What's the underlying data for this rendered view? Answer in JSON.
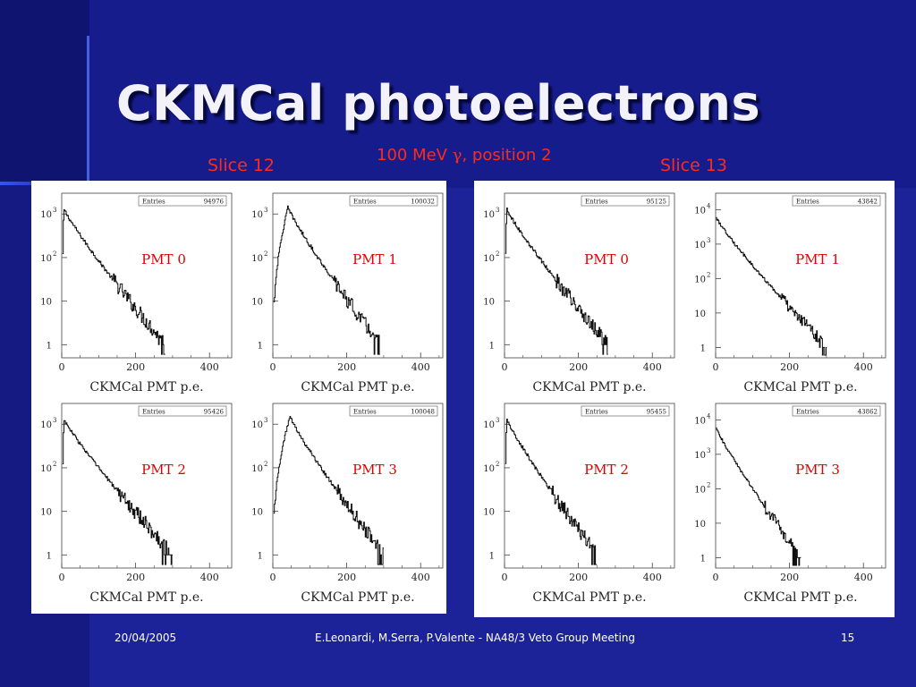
{
  "slide": {
    "title": "CKMCal photoelectrons",
    "condition": {
      "prefix": "100 MeV ",
      "symbol": "γ",
      "suffix": ", position 2"
    },
    "footer": {
      "date": "20/04/2005",
      "authors": "E.Leonardi, M.Serra, P.Valente - NA48/3 Veto Group Meeting",
      "page": "15"
    },
    "colors": {
      "background": "#1c2298",
      "label": "#ff2b1a",
      "pmt_label": "#dd0000"
    }
  },
  "chart_data": [
    {
      "slice_label": "Slice 12",
      "plots": [
        {
          "type": "histogram",
          "pmt_label": "PMT 0",
          "entries_label": "Entries",
          "entries": "94976",
          "xlabel": "CKMCal PMT p.e.",
          "xticks": [
            0,
            200,
            400
          ],
          "xlim": [
            0,
            460
          ],
          "yscale": "log",
          "ylim": [
            0.5,
            3000
          ],
          "yticks": [
            {
              "v": 1,
              "t": "1"
            },
            {
              "v": 10,
              "t": "10"
            },
            {
              "v": 100,
              "t": "10",
              "e": "2"
            },
            {
              "v": 1000,
              "t": "10",
              "e": "3"
            }
          ],
          "peak_x": 5,
          "peak_y": 1300,
          "tail_end_x": 280,
          "noise": 0.35
        },
        {
          "type": "histogram",
          "pmt_label": "PMT 1",
          "entries_label": "Entries",
          "entries": "100032",
          "xlabel": "CKMCal PMT p.e.",
          "xticks": [
            0,
            200,
            400
          ],
          "xlim": [
            0,
            460
          ],
          "yscale": "log",
          "ylim": [
            0.5,
            3000
          ],
          "yticks": [
            {
              "v": 1,
              "t": "1"
            },
            {
              "v": 10,
              "t": "10"
            },
            {
              "v": 100,
              "t": "10",
              "e": "2"
            },
            {
              "v": 1000,
              "t": "10",
              "e": "3"
            }
          ],
          "peak_x": 40,
          "peak_y": 1400,
          "tail_end_x": 290,
          "noise": 0.35
        },
        {
          "type": "histogram",
          "pmt_label": "PMT 2",
          "entries_label": "Entries",
          "entries": "95426",
          "xlabel": "CKMCal PMT p.e.",
          "xticks": [
            0,
            200,
            400
          ],
          "xlim": [
            0,
            460
          ],
          "yscale": "log",
          "ylim": [
            0.5,
            3000
          ],
          "yticks": [
            {
              "v": 1,
              "t": "1"
            },
            {
              "v": 10,
              "t": "10"
            },
            {
              "v": 100,
              "t": "10",
              "e": "2"
            },
            {
              "v": 1000,
              "t": "10",
              "e": "3"
            }
          ],
          "peak_x": 5,
          "peak_y": 1300,
          "tail_end_x": 300,
          "noise": 0.35
        },
        {
          "type": "histogram",
          "pmt_label": "PMT 3",
          "entries_label": "Entries",
          "entries": "100048",
          "xlabel": "CKMCal PMT p.e.",
          "xticks": [
            0,
            200,
            400
          ],
          "xlim": [
            0,
            460
          ],
          "yscale": "log",
          "ylim": [
            0.5,
            3000
          ],
          "yticks": [
            {
              "v": 1,
              "t": "1"
            },
            {
              "v": 10,
              "t": "10"
            },
            {
              "v": 100,
              "t": "10",
              "e": "2"
            },
            {
              "v": 1000,
              "t": "10",
              "e": "3"
            }
          ],
          "peak_x": 45,
          "peak_y": 1500,
          "tail_end_x": 300,
          "noise": 0.35
        }
      ]
    },
    {
      "slice_label": "Slice 13",
      "plots": [
        {
          "type": "histogram",
          "pmt_label": "PMT 0",
          "entries_label": "Entries",
          "entries": "95125",
          "xlabel": "CKMCal PMT p.e.",
          "xticks": [
            0,
            200,
            400
          ],
          "xlim": [
            0,
            460
          ],
          "yscale": "log",
          "ylim": [
            0.5,
            3000
          ],
          "yticks": [
            {
              "v": 1,
              "t": "1"
            },
            {
              "v": 10,
              "t": "10"
            },
            {
              "v": 100,
              "t": "10",
              "e": "2"
            },
            {
              "v": 1000,
              "t": "10",
              "e": "3"
            }
          ],
          "peak_x": 5,
          "peak_y": 1300,
          "tail_end_x": 280,
          "noise": 0.35
        },
        {
          "type": "histogram",
          "pmt_label": "PMT 1",
          "entries_label": "Entries",
          "entries": "43842",
          "xlabel": "CKMCal PMT p.e.",
          "xticks": [
            0,
            200,
            400
          ],
          "xlim": [
            0,
            460
          ],
          "yscale": "log",
          "ylim": [
            0.5,
            30000
          ],
          "yticks": [
            {
              "v": 1,
              "t": "1"
            },
            {
              "v": 10,
              "t": "10"
            },
            {
              "v": 100,
              "t": "10",
              "e": "2"
            },
            {
              "v": 1000,
              "t": "10",
              "e": "3"
            },
            {
              "v": 10000,
              "t": "10",
              "e": "4"
            }
          ],
          "peak_x": 0,
          "peak_y": 6000,
          "tail_end_x": 300,
          "noise": 0.35
        },
        {
          "type": "histogram",
          "pmt_label": "PMT 2",
          "entries_label": "Entries",
          "entries": "95455",
          "xlabel": "CKMCal PMT p.e.",
          "xticks": [
            0,
            200,
            400
          ],
          "xlim": [
            0,
            460
          ],
          "yscale": "log",
          "ylim": [
            0.5,
            3000
          ],
          "yticks": [
            {
              "v": 1,
              "t": "1"
            },
            {
              "v": 10,
              "t": "10"
            },
            {
              "v": 100,
              "t": "10",
              "e": "2"
            },
            {
              "v": 1000,
              "t": "10",
              "e": "3"
            }
          ],
          "peak_x": 5,
          "peak_y": 1300,
          "tail_end_x": 250,
          "noise": 0.35
        },
        {
          "type": "histogram",
          "pmt_label": "PMT 3",
          "entries_label": "Entries",
          "entries": "43862",
          "xlabel": "CKMCal PMT p.e.",
          "xticks": [
            0,
            200,
            400
          ],
          "xlim": [
            0,
            460
          ],
          "yscale": "log",
          "ylim": [
            0.5,
            30000
          ],
          "yticks": [
            {
              "v": 1,
              "t": "1"
            },
            {
              "v": 10,
              "t": "10"
            },
            {
              "v": 100,
              "t": "10",
              "e": "2"
            },
            {
              "v": 1000,
              "t": "10",
              "e": "3"
            },
            {
              "v": 10000,
              "t": "10",
              "e": "4"
            }
          ],
          "peak_x": 0,
          "peak_y": 6000,
          "tail_end_x": 230,
          "noise": 0.35
        }
      ]
    }
  ]
}
